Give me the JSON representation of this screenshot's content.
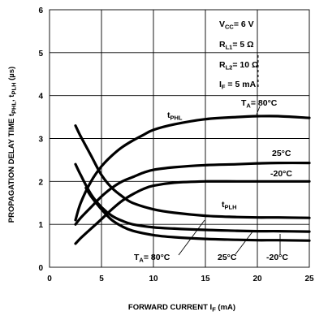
{
  "chart_data": {
    "type": "line",
    "xlabel_main": "FORWARD CURRENT I",
    "xlabel_sub": "F",
    "xlabel_unit": " (mA)",
    "ylabel_main": "PROPAGATION DELAY TIME t",
    "ylabel_sub1": "PHL",
    "ylabel_sep": ", t",
    "ylabel_sub2": "PLH",
    "ylabel_unit": " (µs)",
    "xlim": [
      0,
      25
    ],
    "ylim": [
      0,
      6
    ],
    "xticks": [
      "0",
      "5",
      "10",
      "15",
      "20",
      "25"
    ],
    "yticks": [
      "0",
      "1",
      "2",
      "3",
      "4",
      "5",
      "6"
    ],
    "xtick_values": [
      0,
      5,
      10,
      15,
      20,
      25
    ],
    "ytick_values": [
      0,
      1,
      2,
      3,
      4,
      5,
      6
    ],
    "conditions": [
      {
        "main": "V",
        "sub": "CC",
        "rest": "= 6 V"
      },
      {
        "main": "R",
        "sub": "L1",
        "rest": "= 5 Ω"
      },
      {
        "main": "R",
        "sub": "L2",
        "rest": "= 10 Ω"
      },
      {
        "main": "I",
        "sub": "F",
        "rest": " = 5 mA"
      }
    ],
    "group_labels": {
      "phl": {
        "main": "t",
        "sub": "PHL"
      },
      "plh": {
        "main": "t",
        "sub": "PLH"
      }
    },
    "temp_labels": {
      "phl_80": {
        "main": "T",
        "sub": "A",
        "rest": "= 80°C"
      },
      "phl_25": "25°C",
      "phl_m20": "-20°C",
      "plh_80": {
        "main": "T",
        "sub": "A",
        "rest": "= 80°C"
      },
      "plh_25": "25°C",
      "plh_m20": "-20°C"
    },
    "series": [
      {
        "group": "tPHL",
        "temp": "80°C",
        "x": [
          2.5,
          3,
          4,
          5,
          6,
          7,
          8,
          9,
          10,
          12,
          15,
          18,
          20,
          22,
          25
        ],
        "y": [
          1.1,
          1.5,
          2.0,
          2.35,
          2.6,
          2.8,
          2.95,
          3.08,
          3.2,
          3.33,
          3.45,
          3.5,
          3.52,
          3.52,
          3.48
        ]
      },
      {
        "group": "tPHL",
        "temp": "25°C",
        "x": [
          2.5,
          3,
          4,
          5,
          6,
          7,
          8,
          9,
          10,
          12,
          15,
          18,
          20,
          22,
          25
        ],
        "y": [
          1.0,
          1.15,
          1.4,
          1.65,
          1.85,
          2.0,
          2.1,
          2.2,
          2.27,
          2.33,
          2.38,
          2.4,
          2.42,
          2.43,
          2.43
        ]
      },
      {
        "group": "tPHL",
        "temp": "-20°C",
        "x": [
          2.5,
          3,
          4,
          5,
          6,
          7,
          8,
          9,
          10,
          12,
          15,
          18,
          20,
          22,
          25
        ],
        "y": [
          0.55,
          0.68,
          0.9,
          1.12,
          1.35,
          1.55,
          1.7,
          1.82,
          1.9,
          1.97,
          2.0,
          2.0,
          2.0,
          2.0,
          2.0
        ]
      },
      {
        "group": "tPLH",
        "temp": "80°C",
        "x": [
          2.5,
          3,
          4,
          5,
          6,
          7,
          8,
          10,
          12,
          15,
          18,
          20,
          22,
          25
        ],
        "y": [
          3.3,
          3.05,
          2.6,
          2.15,
          1.85,
          1.65,
          1.5,
          1.35,
          1.27,
          1.2,
          1.17,
          1.16,
          1.16,
          1.15
        ]
      },
      {
        "group": "tPLH",
        "temp": "25°C",
        "x": [
          2.5,
          3,
          4,
          5,
          6,
          7,
          8,
          10,
          12,
          15,
          18,
          20,
          22,
          25
        ],
        "y": [
          2.4,
          2.15,
          1.7,
          1.4,
          1.2,
          1.08,
          1.0,
          0.93,
          0.9,
          0.87,
          0.85,
          0.84,
          0.84,
          0.83
        ]
      },
      {
        "group": "tPLH",
        "temp": "-20°C",
        "x": [
          3.5,
          4,
          5,
          6,
          7,
          8,
          10,
          12,
          15,
          18,
          20,
          22,
          25
        ],
        "y": [
          1.85,
          1.65,
          1.35,
          1.1,
          0.95,
          0.85,
          0.75,
          0.7,
          0.66,
          0.64,
          0.63,
          0.63,
          0.62
        ]
      }
    ],
    "grid": true,
    "legend": "none"
  }
}
